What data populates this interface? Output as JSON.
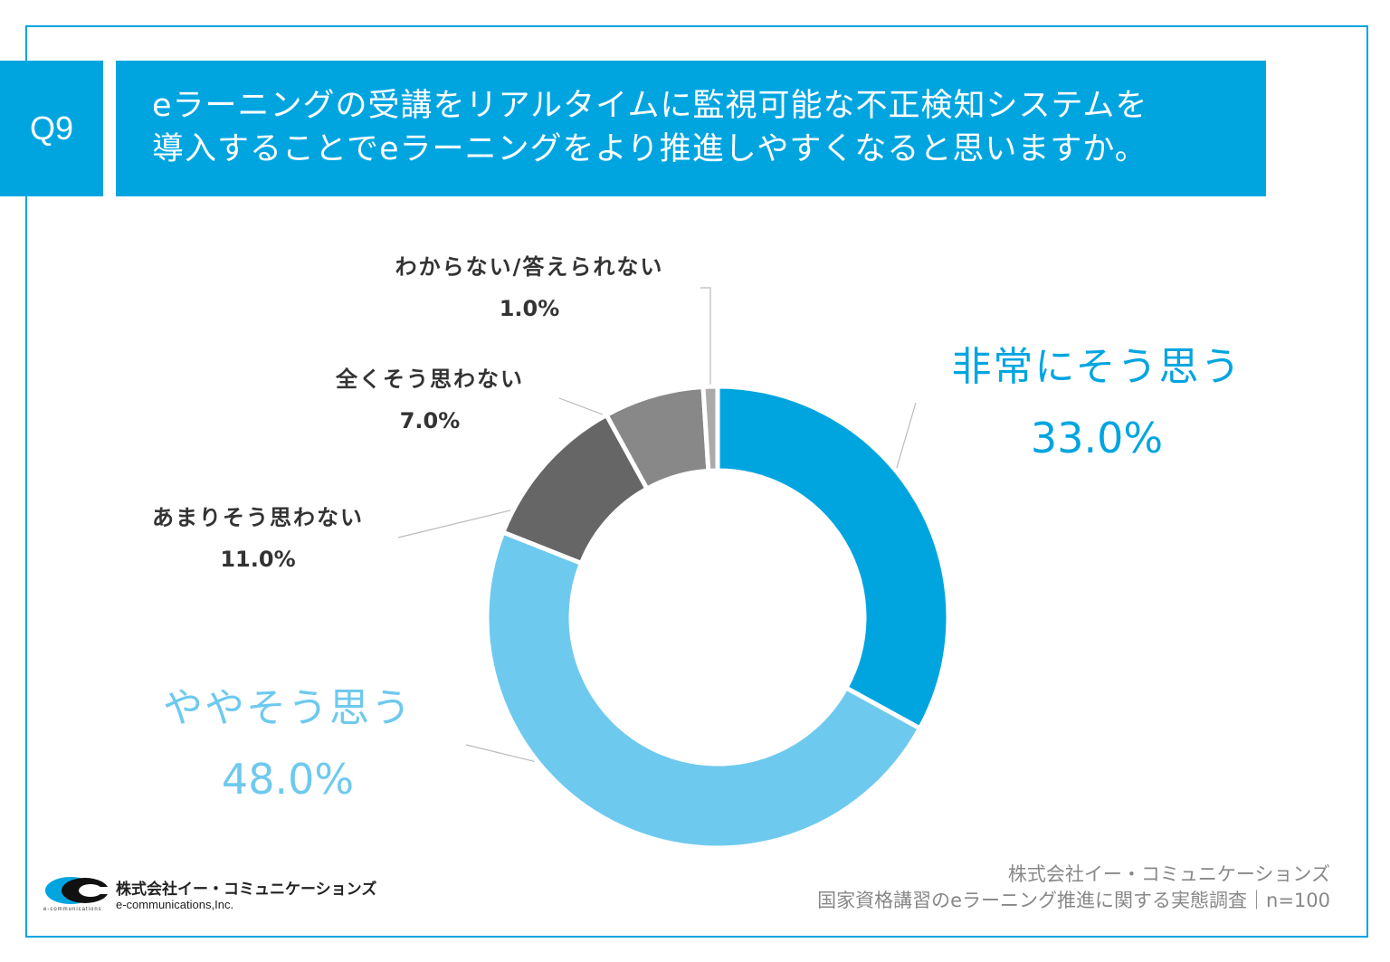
{
  "question": {
    "number": "Q9",
    "line1": "eラーニングの受講をリアルタイムに監視可能な不正検知システムを",
    "line2": "導入することでeラーニングをより推進しやすくなると思いますか。"
  },
  "colors": {
    "accent": "#00a5e0",
    "very_much": "#00a5e0",
    "somewhat": "#6ec9ef",
    "not_much": "#666666",
    "not_at_all": "#888888",
    "dont_know": "#aaaaaa"
  },
  "chart_data": {
    "type": "pie",
    "donut": true,
    "slices": [
      {
        "label": "非常にそう思う",
        "value": 33.0,
        "display": "33.0%",
        "color": "#00a5e0"
      },
      {
        "label": "ややそう思う",
        "value": 48.0,
        "display": "48.0%",
        "color": "#6ec9ef"
      },
      {
        "label": "あまりそう思わない",
        "value": 11.0,
        "display": "11.0%",
        "color": "#666666"
      },
      {
        "label": "全くそう思わない",
        "value": 7.0,
        "display": "7.0%",
        "color": "#888888"
      },
      {
        "label": "わからない/答えられない",
        "value": 1.0,
        "display": "1.0%",
        "color": "#aaaaaa"
      }
    ]
  },
  "logo": {
    "name": "株式会社イー・コミュニケーションズ",
    "en": "e-communications,Inc.",
    "small": "e-communications"
  },
  "source": {
    "company": "株式会社イー・コミュニケーションズ",
    "survey": "国家資格講習のeラーニング推進に関する実態調査｜n=100"
  }
}
